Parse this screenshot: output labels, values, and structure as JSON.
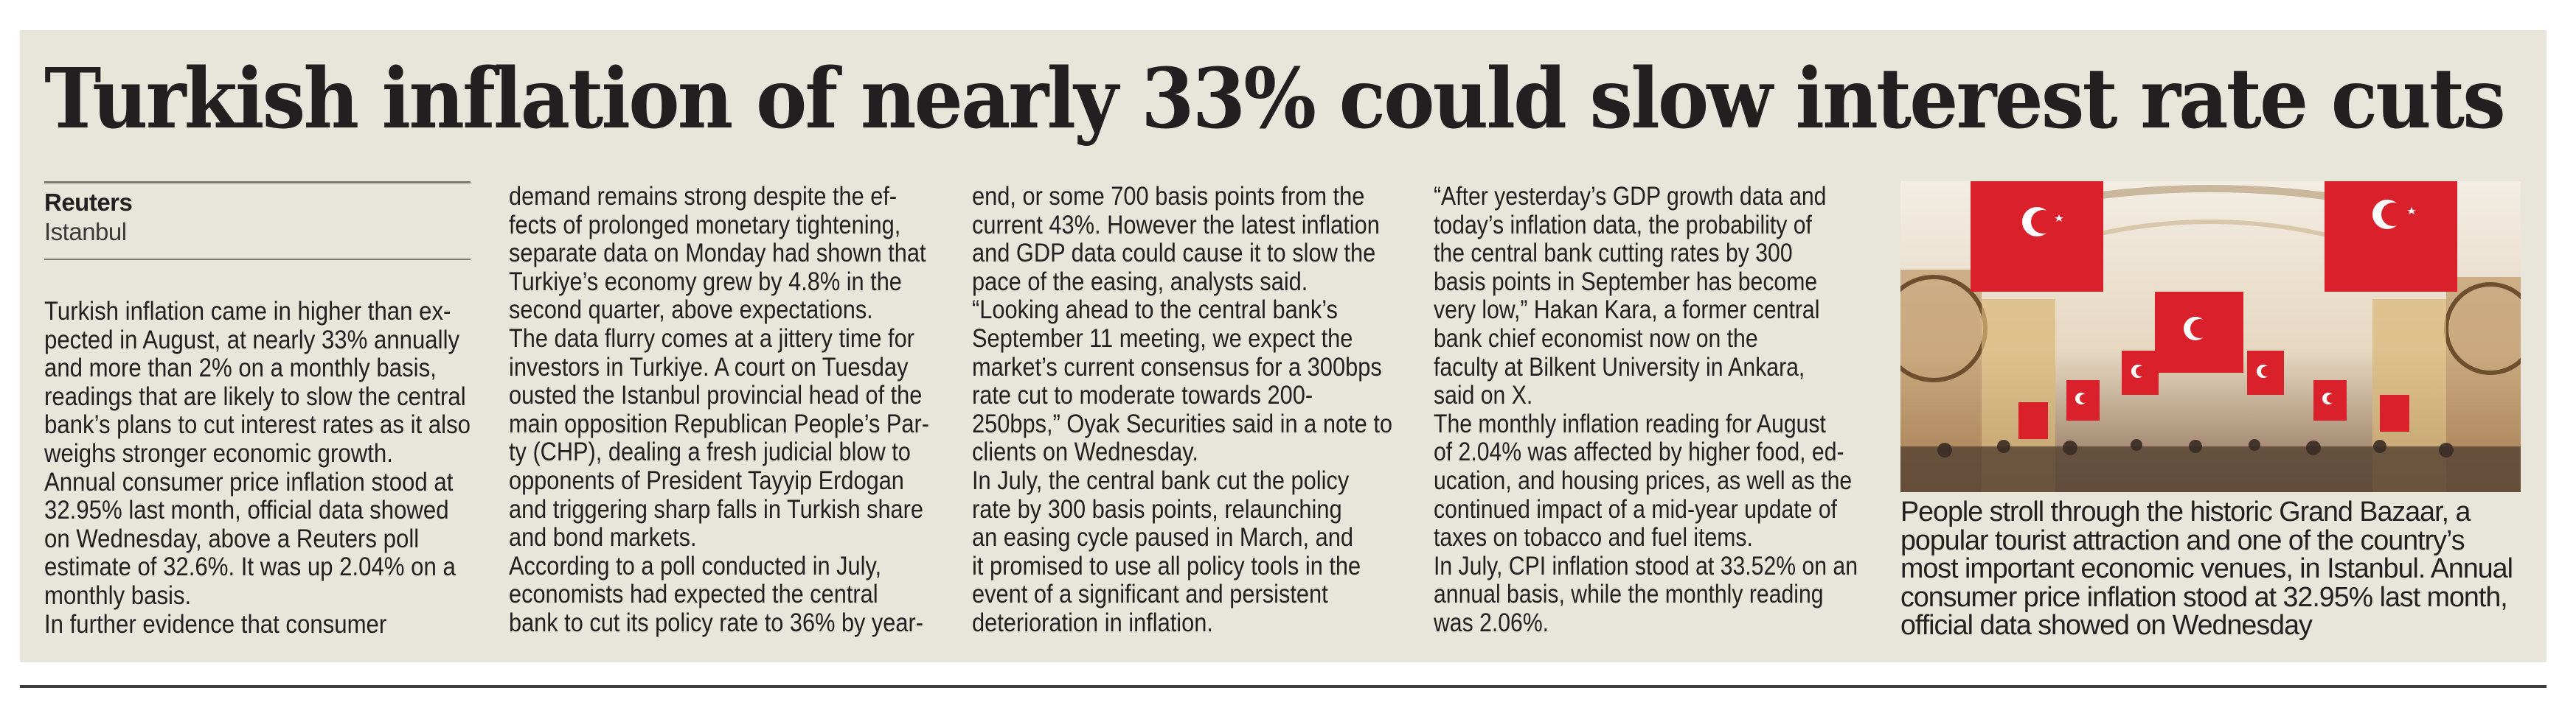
{
  "headline": "Turkish inflation of nearly 33% could slow interest rate cuts",
  "byline": {
    "agency": "Reuters",
    "location": "Istanbul"
  },
  "columns": [
    {
      "lines": [
        "Turkish inflation came in higher than ex-",
        "pected in August, at nearly 33% annually",
        "and more than 2% on a monthly basis,",
        "readings that are likely to slow the central",
        "bank’s plans to cut interest rates as it also",
        "weighs stronger economic growth.",
        "Annual consumer price inflation stood at",
        "32.95% last month, official data showed",
        "on Wednesday, above a Reuters poll",
        "estimate of 32.6%. It was up 2.04% on a",
        "monthly basis.",
        "In further evidence that consumer"
      ]
    },
    {
      "lines": [
        "demand remains strong despite the ef-",
        "fects of prolonged monetary tightening,",
        "separate data on Monday had shown that",
        "Turkiye’s economy grew by 4.8% in the",
        "second quarter, above expectations.",
        "The data flurry comes at a jittery time for",
        "investors in Turkiye. A court on Tuesday",
        "ousted the Istanbul provincial head of the",
        "main opposition Republican People’s Par-",
        "ty (CHP), dealing a fresh judicial blow to",
        "opponents of President Tayyip Erdogan",
        "and triggering sharp falls in Turkish share",
        "and bond markets.",
        "According to a poll conducted in July,",
        "economists had expected the central",
        "bank to cut its policy rate to 36% by year-"
      ]
    },
    {
      "lines": [
        "end, or some 700 basis points from the",
        "current 43%. However the latest inflation",
        "and GDP data could cause it to slow the",
        "pace of the easing, analysts said.",
        "“Looking ahead to the central bank’s",
        "September 11 meeting, we expect the",
        "market’s current consensus for a 300bps",
        "rate cut to moderate towards 200-",
        "250bps,” Oyak Securities said in a note to",
        "clients on Wednesday.",
        "In July, the central bank cut the policy",
        "rate by 300 basis points, relaunching",
        "an easing cycle paused in March, and",
        "it promised to use all policy tools in the",
        "event of a significant and persistent",
        "deterioration in inflation."
      ]
    },
    {
      "lines": [
        "“After yesterday’s GDP growth data and",
        "today’s inflation data, the probability of",
        "the central bank cutting rates by 300",
        "basis points in September has become",
        "very low,” Hakan Kara, a former central",
        "bank chief economist now on the",
        "faculty at Bilkent University in Ankara,",
        "said on X.",
        "The monthly inflation reading for August",
        "of 2.04% was affected by higher food, ed-",
        "ucation, and housing prices, as well as the",
        "continued impact of a mid-year update of",
        "taxes on tobacco and fuel items.",
        "In July, CPI inflation stood at 33.52% on an",
        "annual basis, while the monthly reading",
        "was 2.06%."
      ]
    }
  ],
  "photo": {
    "caption_lines": [
      "People stroll through the historic Grand Bazaar, a",
      "popular tourist attraction and one of the country’s",
      "most important economic venues, in Istanbul. Annual",
      "consumer price inflation stood at 32.95% last month,",
      "official data showed on Wednesday"
    ]
  },
  "colors": {
    "panel": "#e8e5da",
    "text": "#231f20",
    "flag_red": "#d9202b"
  }
}
